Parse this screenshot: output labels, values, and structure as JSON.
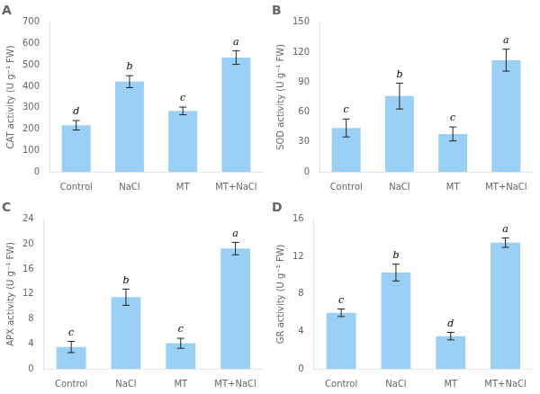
{
  "chart_data": [
    {
      "type": "bar",
      "title": "A",
      "ylabel": "CAT activity (U g⁻¹ FW)",
      "categories": [
        "Control",
        "NaCl",
        "MT",
        "MT+NaCl"
      ],
      "values": [
        218,
        422,
        285,
        535
      ],
      "errors": [
        22,
        28,
        18,
        32
      ],
      "annotations": [
        "d",
        "b",
        "c",
        "a"
      ],
      "ylim": [
        0,
        700
      ],
      "yticks": [
        0,
        100,
        200,
        300,
        400,
        500,
        600,
        700
      ],
      "grid": false
    },
    {
      "type": "bar",
      "title": "B",
      "ylabel": "SOD activity (U g⁻¹ FW)",
      "categories": [
        "Control",
        "NaCl",
        "MT",
        "MT+NaCl"
      ],
      "values": [
        44,
        76,
        38,
        112
      ],
      "errors": [
        9,
        13,
        7,
        11
      ],
      "annotations": [
        "c",
        "b",
        "c",
        "a"
      ],
      "ylim": [
        0,
        150
      ],
      "yticks": [
        0,
        30,
        60,
        90,
        120,
        150
      ],
      "grid": false
    },
    {
      "type": "bar",
      "title": "C",
      "ylabel": "APX activity (U g⁻¹ FW)",
      "categories": [
        "Control",
        "NaCl",
        "MT",
        "MT+NaCl"
      ],
      "values": [
        3.5,
        11.5,
        4.1,
        19.3
      ],
      "errors": [
        0.9,
        1.3,
        0.8,
        1.0
      ],
      "annotations": [
        "c",
        "b",
        "c",
        "a"
      ],
      "ylim": [
        0,
        24
      ],
      "yticks": [
        0,
        4,
        8,
        12,
        16,
        20,
        24
      ],
      "grid": false
    },
    {
      "type": "bar",
      "title": "D",
      "ylabel": "GR activity (U g⁻¹ FW)",
      "categories": [
        "Control",
        "NaCl",
        "MT",
        "MT+NaCl"
      ],
      "values": [
        6.0,
        10.3,
        3.5,
        13.5
      ],
      "errors": [
        0.4,
        0.9,
        0.4,
        0.5
      ],
      "annotations": [
        "c",
        "b",
        "d",
        "a"
      ],
      "ylim": [
        0,
        16
      ],
      "yticks": [
        0,
        4,
        8,
        12,
        16
      ],
      "grid": false
    }
  ]
}
